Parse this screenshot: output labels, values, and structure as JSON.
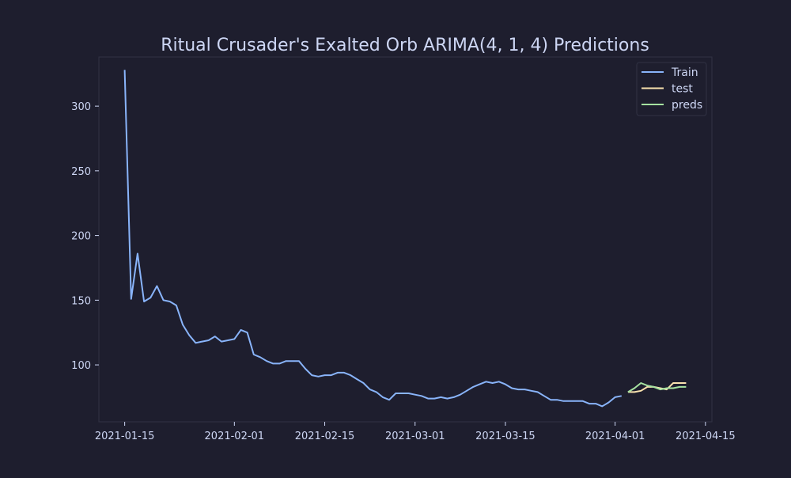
{
  "colors": {
    "background": "#1e1e2e",
    "plot_border": "#313244",
    "text": "#cdd6f4",
    "train": "#89b4fa",
    "test": "#f9e2af",
    "preds": "#a6e3a1"
  },
  "chart_data": {
    "type": "line",
    "title": "Ritual Crusader's Exalted Orb ARIMA(4, 1, 4) Predictions",
    "xlabel": "",
    "ylabel": "",
    "x_axis_type": "date",
    "xlim": [
      "2021-01-11",
      "2021-04-16"
    ],
    "ylim": [
      56,
      338
    ],
    "grid": false,
    "legend_position": "top-right",
    "x_ticks": [
      "2021-01-15",
      "2021-02-01",
      "2021-02-15",
      "2021-03-01",
      "2021-03-15",
      "2021-04-01",
      "2021-04-15"
    ],
    "y_ticks": [
      100,
      150,
      200,
      250,
      300
    ],
    "series": [
      {
        "name": "Train",
        "color": "#89b4fa",
        "x": [
          "2021-01-15",
          "2021-01-16",
          "2021-01-17",
          "2021-01-18",
          "2021-01-19",
          "2021-01-20",
          "2021-01-21",
          "2021-01-22",
          "2021-01-23",
          "2021-01-24",
          "2021-01-25",
          "2021-01-26",
          "2021-01-27",
          "2021-01-28",
          "2021-01-29",
          "2021-01-30",
          "2021-01-31",
          "2021-02-01",
          "2021-02-02",
          "2021-02-03",
          "2021-02-04",
          "2021-02-05",
          "2021-02-06",
          "2021-02-07",
          "2021-02-08",
          "2021-02-09",
          "2021-02-10",
          "2021-02-11",
          "2021-02-12",
          "2021-02-13",
          "2021-02-14",
          "2021-02-15",
          "2021-02-16",
          "2021-02-17",
          "2021-02-18",
          "2021-02-19",
          "2021-02-20",
          "2021-02-21",
          "2021-02-22",
          "2021-02-23",
          "2021-02-24",
          "2021-02-25",
          "2021-02-26",
          "2021-02-27",
          "2021-02-28",
          "2021-03-01",
          "2021-03-02",
          "2021-03-03",
          "2021-03-04",
          "2021-03-05",
          "2021-03-06",
          "2021-03-07",
          "2021-03-08",
          "2021-03-09",
          "2021-03-10",
          "2021-03-11",
          "2021-03-12",
          "2021-03-13",
          "2021-03-14",
          "2021-03-15",
          "2021-03-16",
          "2021-03-17",
          "2021-03-18",
          "2021-03-19",
          "2021-03-20",
          "2021-03-21",
          "2021-03-22",
          "2021-03-23",
          "2021-03-24",
          "2021-03-25",
          "2021-03-26",
          "2021-03-27",
          "2021-03-28",
          "2021-03-29",
          "2021-03-30",
          "2021-03-31",
          "2021-04-01",
          "2021-04-02"
        ],
        "values": [
          328,
          151,
          186,
          149,
          152,
          161,
          150,
          149,
          146,
          131,
          123,
          117,
          118,
          119,
          122,
          118,
          119,
          120,
          127,
          125,
          108,
          106,
          103,
          101,
          101,
          103,
          103,
          103,
          97,
          92,
          91,
          92,
          92,
          94,
          94,
          92,
          89,
          86,
          81,
          79,
          75,
          73,
          78,
          78,
          78,
          77,
          76,
          74,
          74,
          75,
          74,
          75,
          77,
          80,
          83,
          85,
          87,
          86,
          87,
          85,
          82,
          81,
          81,
          80,
          79,
          76,
          73,
          73,
          72,
          72,
          72,
          72,
          70,
          70,
          68,
          71,
          75,
          76
        ]
      },
      {
        "name": "test",
        "color": "#f9e2af",
        "x": [
          "2021-04-03",
          "2021-04-04",
          "2021-04-05",
          "2021-04-06",
          "2021-04-07",
          "2021-04-08",
          "2021-04-09",
          "2021-04-10",
          "2021-04-11",
          "2021-04-12"
        ],
        "values": [
          79,
          79,
          80,
          83,
          83,
          82,
          81,
          86,
          86,
          86
        ]
      },
      {
        "name": "preds",
        "color": "#a6e3a1",
        "x": [
          "2021-04-03",
          "2021-04-04",
          "2021-04-05",
          "2021-04-06",
          "2021-04-07",
          "2021-04-08",
          "2021-04-09",
          "2021-04-10",
          "2021-04-11",
          "2021-04-12"
        ],
        "values": [
          79,
          82,
          86,
          84,
          83,
          81,
          82,
          82,
          83,
          83
        ]
      }
    ]
  }
}
